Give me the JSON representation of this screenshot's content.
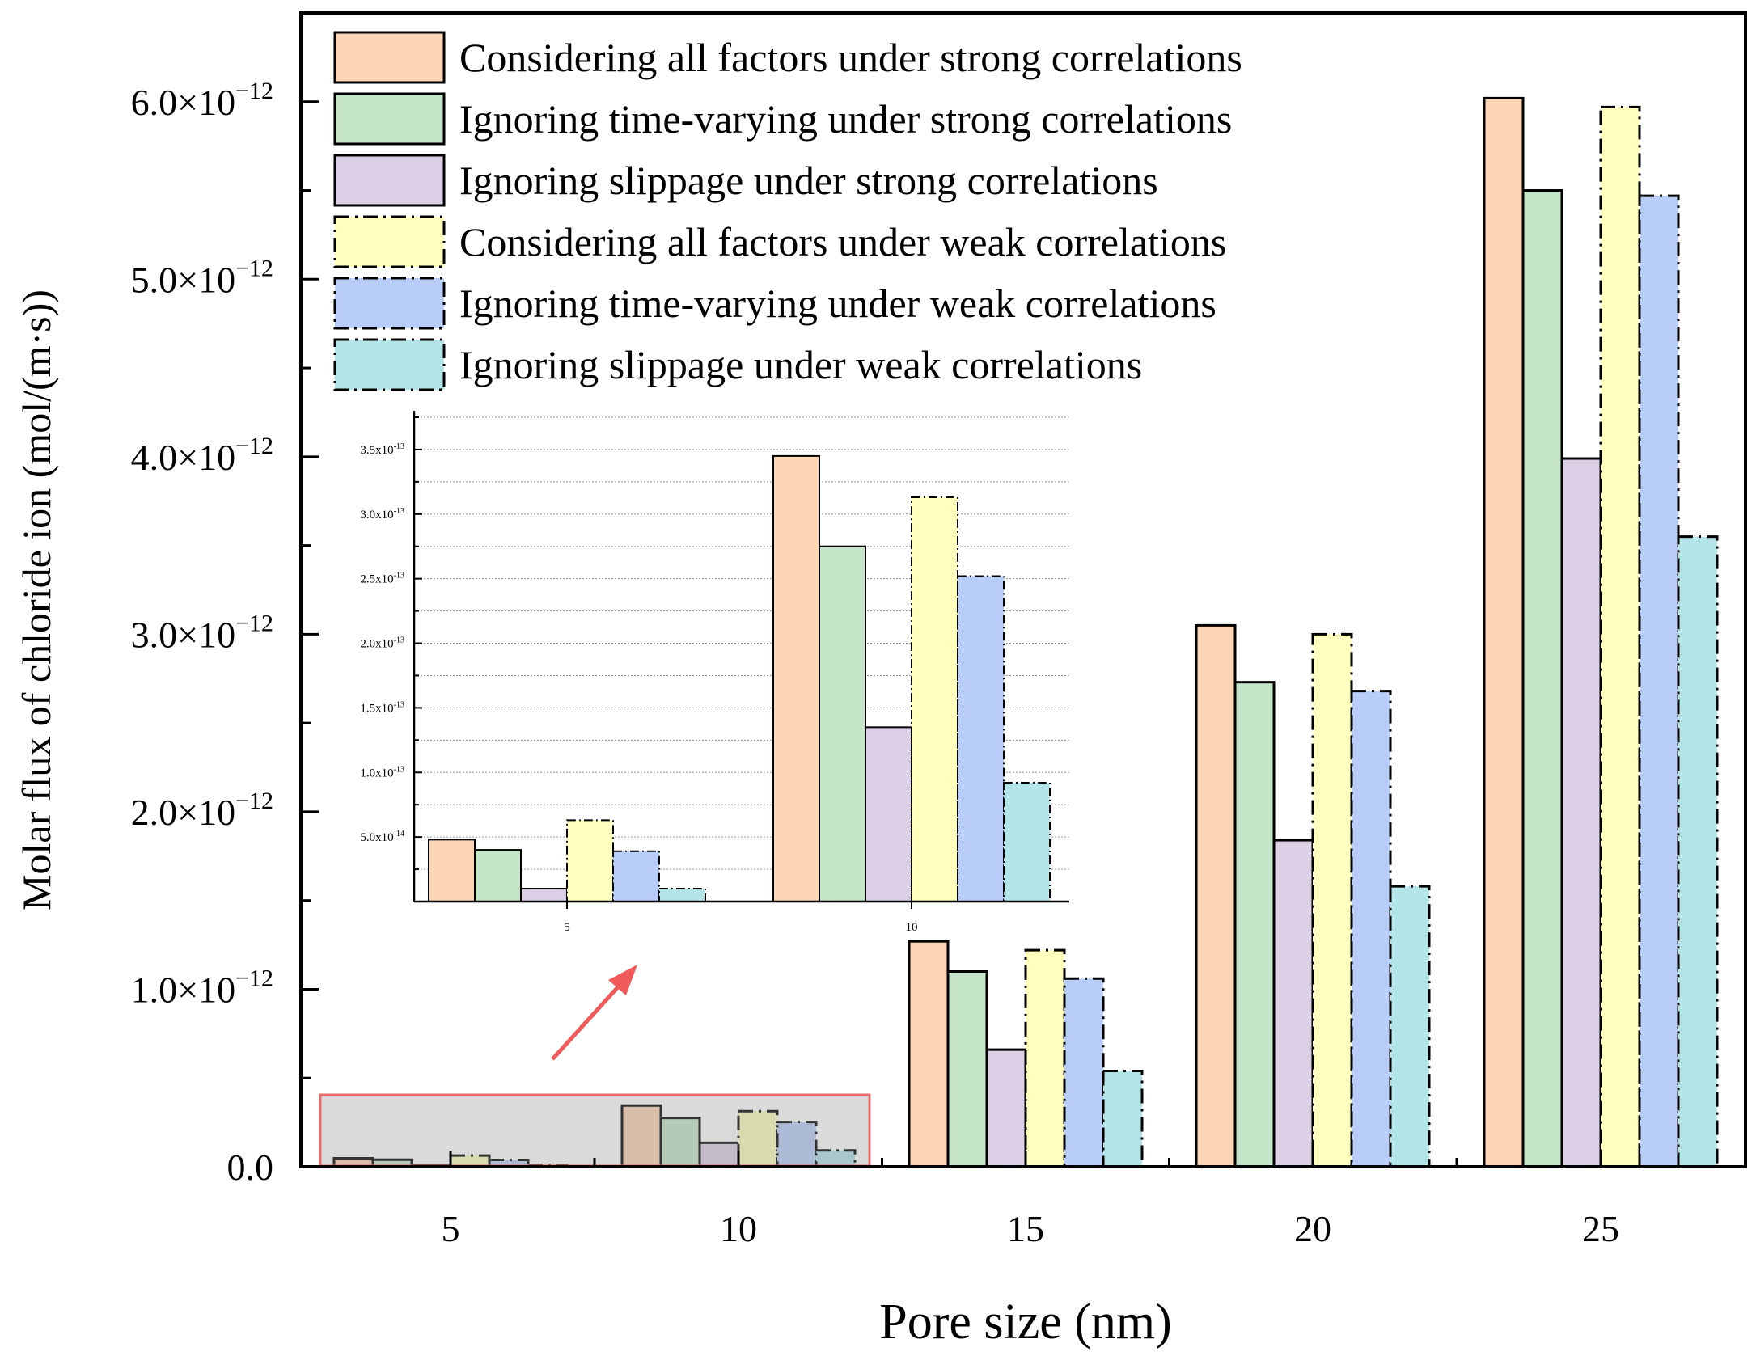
{
  "chart_data": {
    "type": "bar",
    "title": "",
    "xlabel": "Pore size (nm)",
    "ylabel": "Molar flux of chloride ion (mol/(m·s))",
    "categories": [
      "5",
      "10",
      "15",
      "20",
      "25"
    ],
    "ylim": [
      0,
      6.5e-12
    ],
    "y_ticks": [
      {
        "value": 0,
        "mantissa": "0.0",
        "exp": ""
      },
      {
        "value": 1e-12,
        "mantissa": "1.0×10",
        "exp": "−12"
      },
      {
        "value": 2e-12,
        "mantissa": "2.0×10",
        "exp": "−12"
      },
      {
        "value": 3e-12,
        "mantissa": "3.0×10",
        "exp": "−12"
      },
      {
        "value": 4e-12,
        "mantissa": "4.0×10",
        "exp": "−12"
      },
      {
        "value": 5e-12,
        "mantissa": "5.0×10",
        "exp": "−12"
      },
      {
        "value": 6e-12,
        "mantissa": "6.0×10",
        "exp": "−12"
      }
    ],
    "legend_position": "top-left",
    "series": [
      {
        "name": "Considering all factors under strong correlations",
        "color": "#fcd5b5",
        "dash": "solid",
        "values": [
          4.8e-14,
          3.45e-13,
          1.27e-12,
          3.05e-12,
          6.02e-12
        ]
      },
      {
        "name": "Ignoring time-varying under strong correlations",
        "color": "#c5e5c8",
        "dash": "solid",
        "values": [
          4e-14,
          2.75e-13,
          1.1e-12,
          2.73e-12,
          5.5e-12
        ]
      },
      {
        "name": "Ignoring slippage under strong correlations",
        "color": "#dcd0e6",
        "dash": "solid",
        "values": [
          1e-14,
          1.35e-13,
          6.6e-13,
          1.84e-12,
          3.99e-12
        ]
      },
      {
        "name": "Considering all factors under weak correlations",
        "color": "#ffffbe",
        "dash": "dashdot",
        "values": [
          6.3e-14,
          3.13e-13,
          1.22e-12,
          3e-12,
          5.97e-12
        ]
      },
      {
        "name": "Ignoring time-varying under weak correlations",
        "color": "#b8cef8",
        "dash": "dashdot",
        "values": [
          3.9e-14,
          2.52e-13,
          1.06e-12,
          2.68e-12,
          5.47e-12
        ]
      },
      {
        "name": "Ignoring slippage under weak correlations",
        "color": "#b2e4e8",
        "dash": "dashdot",
        "values": [
          1e-14,
          9.2e-14,
          5.4e-13,
          1.58e-12,
          3.55e-12
        ]
      }
    ],
    "inset": {
      "categories": [
        "5",
        "10"
      ],
      "ylim": [
        0,
        3.8e-13
      ],
      "y_ticks": [
        {
          "value": 5e-14,
          "mantissa": "5.0x10",
          "exp": "-14"
        },
        {
          "value": 1e-13,
          "mantissa": "1.0x10",
          "exp": "-13"
        },
        {
          "value": 1.5e-13,
          "mantissa": "1.5x10",
          "exp": "-13"
        },
        {
          "value": 2e-13,
          "mantissa": "2.0x10",
          "exp": "-13"
        },
        {
          "value": 2.5e-13,
          "mantissa": "2.5x10",
          "exp": "-13"
        },
        {
          "value": 3e-13,
          "mantissa": "3.0x10",
          "exp": "-13"
        },
        {
          "value": 3.5e-13,
          "mantissa": "3.5x10",
          "exp": "-13"
        }
      ],
      "grid": true
    }
  }
}
